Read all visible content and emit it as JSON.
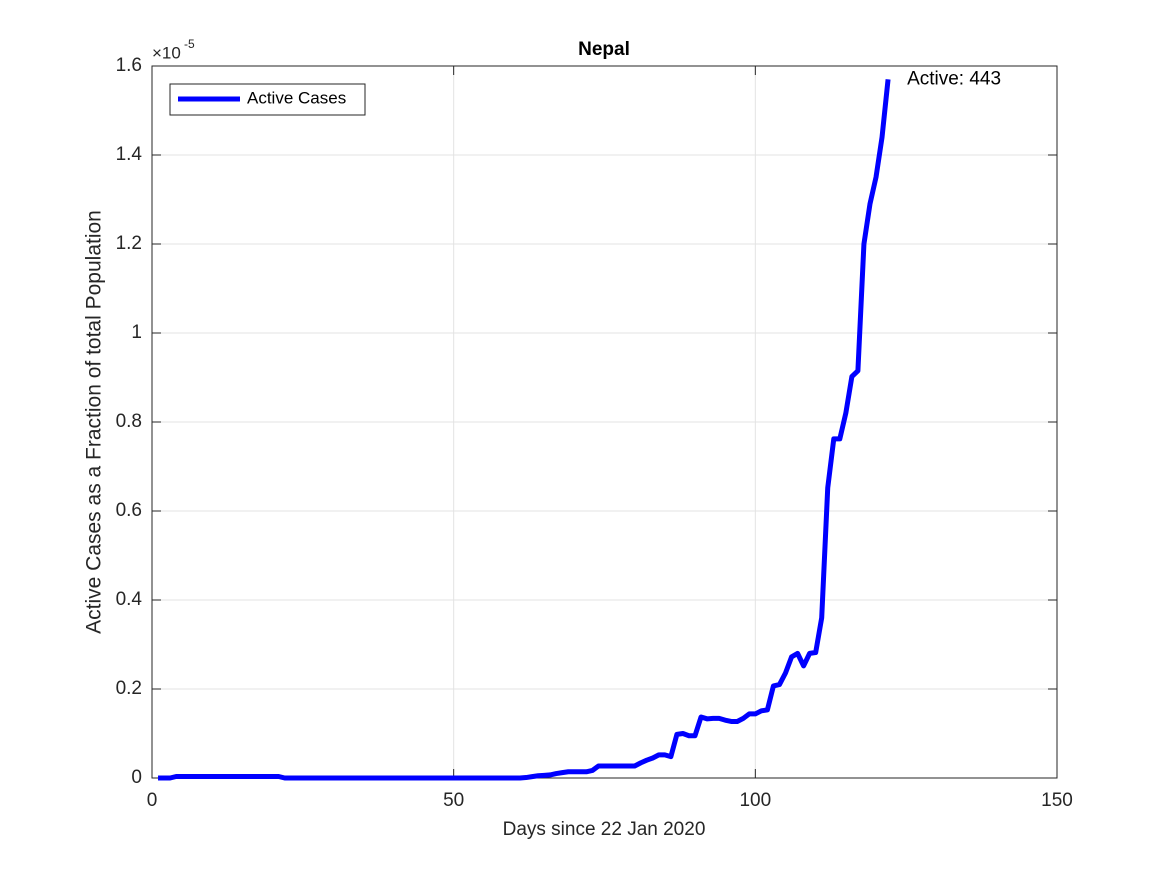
{
  "chart_data": {
    "type": "line",
    "title": "Nepal",
    "xlabel": "Days since 22 Jan 2020",
    "ylabel": "Active Cases as a Fraction of total Population",
    "y_scale_label": "×10",
    "y_scale_exponent": "-5",
    "annotation": "Active: 443",
    "x": [
      1,
      2,
      3,
      4,
      5,
      6,
      7,
      8,
      9,
      10,
      11,
      12,
      13,
      14,
      15,
      16,
      17,
      18,
      19,
      20,
      21,
      22,
      23,
      24,
      25,
      26,
      27,
      28,
      29,
      30,
      31,
      32,
      33,
      34,
      35,
      36,
      37,
      38,
      39,
      40,
      41,
      42,
      43,
      44,
      45,
      46,
      47,
      48,
      49,
      50,
      51,
      52,
      53,
      54,
      55,
      56,
      57,
      58,
      59,
      60,
      61,
      62,
      63,
      64,
      65,
      66,
      67,
      68,
      69,
      70,
      71,
      72,
      73,
      74,
      75,
      76,
      77,
      78,
      79,
      80,
      81,
      82,
      83,
      84,
      85,
      86,
      87,
      88,
      89,
      90,
      91,
      92,
      93,
      94,
      95,
      96,
      97,
      98,
      99,
      100,
      101,
      102,
      103,
      104,
      105,
      106,
      107,
      108,
      109,
      110,
      111,
      112,
      113,
      114,
      115,
      116,
      117,
      118,
      119,
      120,
      121,
      122
    ],
    "series": [
      {
        "name": "Active Cases",
        "color": "#0000ff",
        "values": [
          0,
          0,
          0,
          0.0034,
          0.0034,
          0.0034,
          0.0034,
          0.0034,
          0.0034,
          0.0034,
          0.0034,
          0.0034,
          0.0034,
          0.0034,
          0.0034,
          0.0034,
          0.0034,
          0.0034,
          0.0034,
          0.0034,
          0.0034,
          0,
          0,
          0,
          0,
          0,
          0,
          0,
          0,
          0,
          0,
          0,
          0,
          0,
          0,
          0,
          0,
          0,
          0,
          0,
          0,
          0,
          0,
          0,
          0,
          0,
          0,
          0,
          0,
          0,
          0,
          0,
          0,
          0,
          0,
          0,
          0,
          0,
          0,
          0,
          0,
          0.001,
          0.003,
          0.005,
          0.006,
          0.007,
          0.01,
          0.012,
          0.014,
          0.014,
          0.014,
          0.014,
          0.017,
          0.027,
          0.027,
          0.027,
          0.027,
          0.027,
          0.027,
          0.027,
          0.034,
          0.04,
          0.045,
          0.052,
          0.052,
          0.048,
          0.098,
          0.1,
          0.095,
          0.095,
          0.137,
          0.133,
          0.134,
          0.134,
          0.13,
          0.127,
          0.127,
          0.134,
          0.144,
          0.144,
          0.151,
          0.153,
          0.207,
          0.21,
          0.236,
          0.272,
          0.28,
          0.252,
          0.28,
          0.282,
          0.36,
          0.652,
          0.762,
          0.762,
          0.82,
          0.902,
          0.915,
          1.2,
          1.29,
          1.35,
          1.44,
          1.57
        ]
      }
    ],
    "xlim": [
      0,
      150
    ],
    "xticks": [
      0,
      50,
      100,
      150
    ],
    "ylim": [
      0,
      1.6
    ],
    "yticks": [
      0,
      0.2,
      0.4,
      0.6,
      0.8,
      1,
      1.2,
      1.4,
      1.6
    ],
    "grid": true,
    "legend": "top-left"
  }
}
